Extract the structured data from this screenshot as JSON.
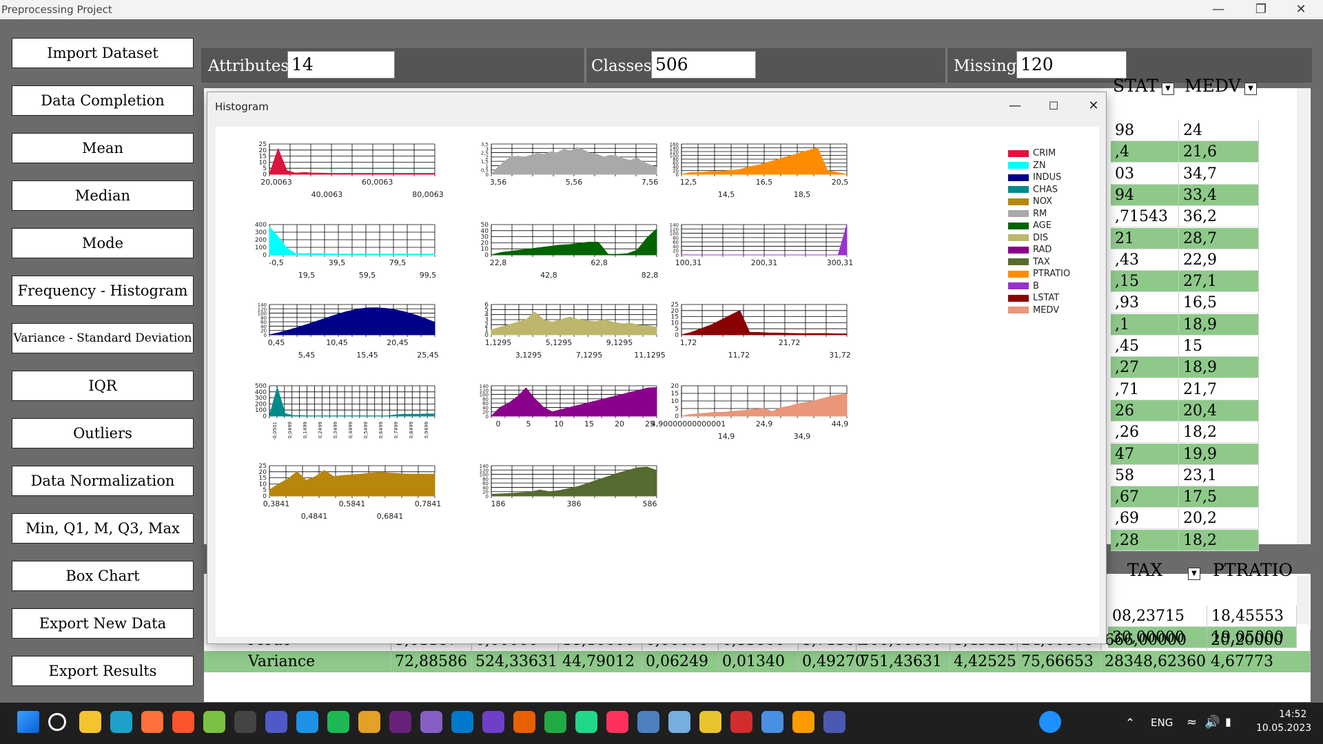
{
  "window": {
    "title": "Preprocessing Project"
  },
  "sidebar": [
    "Import Dataset",
    "Data Completion",
    "Mean",
    "Median",
    "Mode",
    "Frequency - Histogram",
    "Variance - Standard Deviation",
    "IQR",
    "Outliers",
    "Data Normalization",
    "Min, Q1, M, Q3, Max",
    "Box Chart",
    "Export New Data",
    "Export Results"
  ],
  "summary": {
    "attributes_label": "Attributes",
    "attributes_value": "14",
    "classes_label": "Classes",
    "classes_value": "506",
    "missing_label": "Missing",
    "missing_value": "120"
  },
  "grid": {
    "headers": [
      "STAT",
      "MEDV"
    ],
    "rows": [
      [
        "98",
        "24"
      ],
      [
        ",4",
        "21,6"
      ],
      [
        "03",
        "34,7"
      ],
      [
        "94",
        "33,4"
      ],
      [
        ",71543",
        "36,2"
      ],
      [
        "21",
        "28,7"
      ],
      [
        ",43",
        "22,9"
      ],
      [
        ",15",
        "27,1"
      ],
      [
        ",93",
        "16,5"
      ],
      [
        ",1",
        "18,9"
      ],
      [
        ",45",
        "15"
      ],
      [
        ",27",
        "18,9"
      ],
      [
        ",71",
        "21,7"
      ],
      [
        "26",
        "20,4"
      ],
      [
        ",26",
        "18,2"
      ],
      [
        "47",
        "19,9"
      ],
      [
        "58",
        "23,1"
      ],
      [
        ",67",
        "17,5"
      ],
      [
        ",69",
        "20,2"
      ],
      [
        ",28",
        "18,2"
      ]
    ]
  },
  "stats": {
    "headers": [
      "TAX",
      "PTRATIO"
    ],
    "top_rows": [
      [
        "08,23715",
        "18,45553"
      ],
      [
        "30,00000",
        "19,05000"
      ]
    ],
    "mode_label": "Mode",
    "mode_values": [
      "3,61187",
      "0,00000",
      "18,10000",
      "0,00000",
      "0,53800",
      "5,71300",
      "100,00000",
      "3,49520",
      "24,00000",
      "666,00000",
      "20,20000"
    ],
    "variance_label": "Variance",
    "variance_values": [
      "72,88586",
      "524,33631",
      "44,79012",
      "0,06249",
      "0,01340",
      "0,49270",
      "751,43631",
      "4,42525",
      "75,66653",
      "28348,62360",
      "4,67773"
    ]
  },
  "histogram": {
    "title": "Histogram",
    "legend": [
      {
        "name": "CRIM",
        "color": "#dc143c"
      },
      {
        "name": "ZN",
        "color": "#00ffff"
      },
      {
        "name": "INDUS",
        "color": "#00008b"
      },
      {
        "name": "CHAS",
        "color": "#008b8b"
      },
      {
        "name": "NOX",
        "color": "#b8860b"
      },
      {
        "name": "RM",
        "color": "#a9a9a9"
      },
      {
        "name": "AGE",
        "color": "#006400"
      },
      {
        "name": "DIS",
        "color": "#bdb76b"
      },
      {
        "name": "RAD",
        "color": "#8b008b"
      },
      {
        "name": "TAX",
        "color": "#556b2f"
      },
      {
        "name": "PTRATIO",
        "color": "#ff8c00"
      },
      {
        "name": "B",
        "color": "#9932cc"
      },
      {
        "name": "LSTAT",
        "color": "#8b0000"
      },
      {
        "name": "MEDV",
        "color": "#e9967a"
      }
    ],
    "charts": [
      {
        "name": "CRIM",
        "yticks": [
          "25",
          "20",
          "15",
          "10",
          "5",
          "0"
        ],
        "xticks": [
          "20,0063",
          "40,0063",
          "60,0063",
          "80,0063"
        ],
        "values": [
          0,
          21,
          3,
          1,
          1.5,
          1,
          1,
          0.8,
          0.8,
          0.8,
          0.8,
          0.8,
          0.8,
          0.8,
          0.8,
          0.8,
          0.8,
          0.8,
          0.8,
          0.8
        ]
      },
      {
        "name": "RM",
        "yticks": [
          "3,5",
          "3",
          "2,5",
          "2",
          "1,5",
          "1",
          "0,5",
          "0"
        ],
        "xticks": [
          "3,56",
          "5,56",
          "7,56"
        ],
        "values": [
          0,
          0.8,
          1.5,
          2,
          2.1,
          2,
          2.2,
          2.4,
          2.3,
          2.6,
          2.5,
          2.9,
          2.7,
          3.1,
          2.8,
          2.4,
          2.3,
          2,
          2.2,
          2.1,
          1.8,
          1.6,
          1.9,
          1.4,
          1.1,
          0.8
        ]
      },
      {
        "name": "PTRATIO",
        "yticks": [
          "160",
          "140",
          "120",
          "100",
          "80",
          "60",
          "40",
          "20",
          "0"
        ],
        "xticks": [
          "12,5",
          "14,5",
          "16,5",
          "18,5",
          "20,5"
        ],
        "values": [
          0,
          10,
          10,
          15,
          15,
          20,
          25,
          40,
          50,
          65,
          80,
          95,
          110,
          125,
          140,
          20,
          10,
          0
        ]
      },
      {
        "name": "ZN",
        "yticks": [
          "400",
          "300",
          "200",
          "100",
          "0"
        ],
        "xticks": [
          "-0,5",
          "19,5",
          "39,5",
          "59,5",
          "79,5",
          "99,5"
        ],
        "values": [
          370,
          240,
          90,
          15,
          15,
          15,
          15,
          12,
          12,
          12,
          12,
          12,
          12,
          12,
          12,
          12,
          12,
          12,
          12,
          12
        ]
      },
      {
        "name": "AGE",
        "yticks": [
          "50",
          "40",
          "30",
          "20",
          "10",
          "0"
        ],
        "xticks": [
          "22,8",
          "42,8",
          "62,8",
          "82,8"
        ],
        "values": [
          0,
          4,
          6,
          8,
          10,
          12,
          14,
          16,
          17,
          19,
          21,
          21,
          1,
          1,
          2,
          8,
          28,
          43
        ]
      },
      {
        "name": "B",
        "yticks": [
          "140",
          "120",
          "100",
          "80",
          "60",
          "40",
          "20",
          "0"
        ],
        "xticks": [
          "100,31",
          "200,31",
          "300,31"
        ],
        "values": [
          0,
          0,
          0,
          0,
          0,
          0,
          0,
          0,
          0,
          0,
          0,
          0,
          0,
          0,
          0,
          0,
          0,
          0,
          0,
          140
        ]
      },
      {
        "name": "INDUS",
        "yticks": [
          "140",
          "120",
          "100",
          "80",
          "60",
          "40",
          "20",
          "0"
        ],
        "xticks": [
          "0,45",
          "5,45",
          "10,45",
          "15,45",
          "20,45",
          "25,45"
        ],
        "values": [
          0,
          10,
          22,
          36,
          50,
          65,
          80,
          95,
          108,
          118,
          124,
          125,
          122,
          115,
          105,
          92,
          75,
          58
        ]
      },
      {
        "name": "DIS",
        "yticks": [
          "6",
          "5",
          "4",
          "3",
          "2",
          "1",
          "0"
        ],
        "xticks": [
          "1,1295",
          "3,1295",
          "5,1295",
          "7,1295",
          "9,1295",
          "11,1295"
        ],
        "values": [
          1,
          1.5,
          2,
          2.5,
          3,
          4.5,
          3,
          2.5,
          3,
          3.5,
          3,
          2.8,
          2.6,
          3,
          2.5,
          2.2,
          2.3,
          1.9,
          1.8,
          1.5
        ]
      },
      {
        "name": "LSTAT",
        "yticks": [
          "25",
          "20",
          "15",
          "10",
          "5",
          "0"
        ],
        "xticks": [
          "1,72",
          "11,72",
          "21,72",
          "31,72"
        ],
        "values": [
          0,
          2,
          5,
          8,
          12,
          16,
          20,
          2,
          2,
          1.5,
          1.5,
          1.2,
          1,
          1,
          1,
          1,
          0.8,
          0.8
        ]
      },
      {
        "name": "CHAS",
        "yticks": [
          "500",
          "400",
          "300",
          "200",
          "100",
          "0"
        ],
        "xticks": [
          "-0,0501",
          "0,0499",
          "0,1499",
          "0,2499",
          "0,3499",
          "0,4499",
          "0,5499",
          "0,6499",
          "0,7499",
          "0,8499",
          "0,9499"
        ],
        "values": [
          0,
          471,
          40,
          10,
          8,
          5,
          4,
          4,
          4,
          4,
          4,
          4,
          4,
          4,
          4,
          4,
          20,
          30,
          30,
          30,
          35,
          35
        ]
      },
      {
        "name": "RAD",
        "yticks": [
          "140",
          "120",
          "100",
          "80",
          "60",
          "40",
          "20",
          "0"
        ],
        "xticks": [
          "0",
          "5",
          "10",
          "15",
          "20",
          "25"
        ],
        "values": [
          0,
          40,
          60,
          90,
          130,
          80,
          40,
          20,
          30,
          40,
          50,
          60,
          70,
          80,
          90,
          100,
          110,
          120,
          130,
          132
        ]
      },
      {
        "name": "MEDV",
        "yticks": [
          "20",
          "15",
          "10",
          "5",
          "0"
        ],
        "xticks": [
          "4,90000000000001",
          "14,9",
          "24,9",
          "34,9",
          "44,9"
        ],
        "values": [
          0,
          1,
          1.5,
          2,
          2.5,
          2.5,
          3,
          3.5,
          4,
          4.5,
          5,
          3,
          5.5,
          6.5,
          8,
          9,
          10,
          11.5,
          13,
          14,
          14.5
        ]
      },
      {
        "name": "NOX",
        "yticks": [
          "25",
          "20",
          "15",
          "10",
          "5",
          "0"
        ],
        "xticks": [
          "0,3841",
          "0,4841",
          "0,5841",
          "0,6841",
          "0,7841"
        ],
        "values": [
          5,
          10,
          14,
          20,
          13,
          16,
          21,
          16,
          17,
          17.5,
          18,
          19,
          19.5,
          19,
          18.5,
          18,
          18,
          18,
          18
        ]
      },
      {
        "name": "TAX",
        "yticks": [
          "140",
          "120",
          "100",
          "80",
          "60",
          "40",
          "20",
          "0"
        ],
        "xticks": [
          "186",
          "386",
          "586"
        ],
        "values": [
          8,
          10,
          12,
          15,
          18,
          28,
          20,
          25,
          35,
          45,
          60,
          75,
          90,
          105,
          118,
          130,
          134,
          118
        ]
      }
    ]
  },
  "taskbar": {
    "lang": "ENG",
    "time": "14:52",
    "date": "10.05.2023",
    "icons": [
      "windows-icon",
      "search-icon",
      "folder-icon",
      "edge-icon",
      "firefox-icon",
      "brave-icon",
      "camtasia-icon",
      "obs-icon",
      "teams-icon",
      "docker-icon",
      "spotify-icon",
      "photos-icon",
      "vs-icon",
      "vs2-icon",
      "vscode-icon",
      "github-icon",
      "matlab-icon",
      "hotspot-icon",
      "pycharm-icon",
      "intellij-icon",
      "r-icon",
      "rstudio-icon",
      "miktex-icon",
      "mendeley-icon",
      "network-icon",
      "capture-icon",
      "editor-icon",
      "app-icon"
    ]
  }
}
